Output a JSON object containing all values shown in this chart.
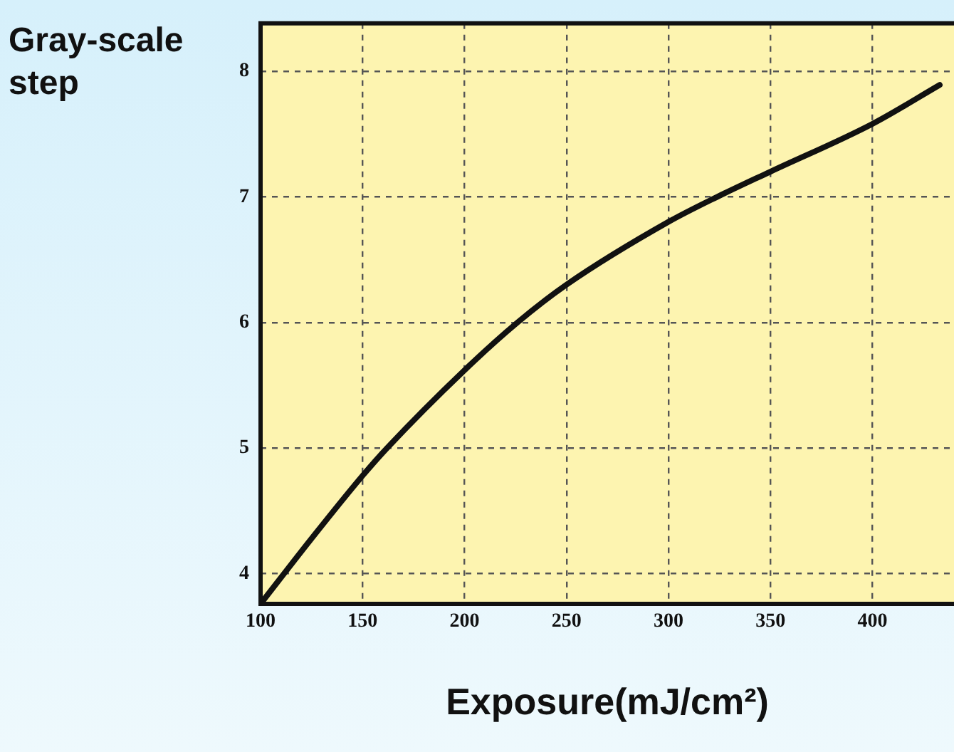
{
  "chart_data": {
    "type": "line",
    "xlabel": "Exposure(mJ/cm²)",
    "ylabel": "Gray-scale step",
    "x": [
      100,
      125,
      150,
      162,
      200,
      226,
      250,
      300,
      324,
      350,
      400,
      433
    ],
    "series": [
      {
        "color": "#111111",
        "values": [
          3.76,
          4.28,
          4.78,
          5,
          5.62,
          6,
          6.3,
          6.8,
          7,
          7.2,
          7.58,
          7.89
        ]
      }
    ],
    "xlim": [
      100,
      440
    ],
    "xticks": [
      100,
      150,
      200,
      250,
      300,
      350,
      400
    ],
    "ylim": [
      3.76,
      8.38
    ],
    "yticks": [
      4,
      5,
      6,
      7,
      8
    ],
    "grid": true,
    "legend": false,
    "marker": "none",
    "line_style": "solid"
  }
}
